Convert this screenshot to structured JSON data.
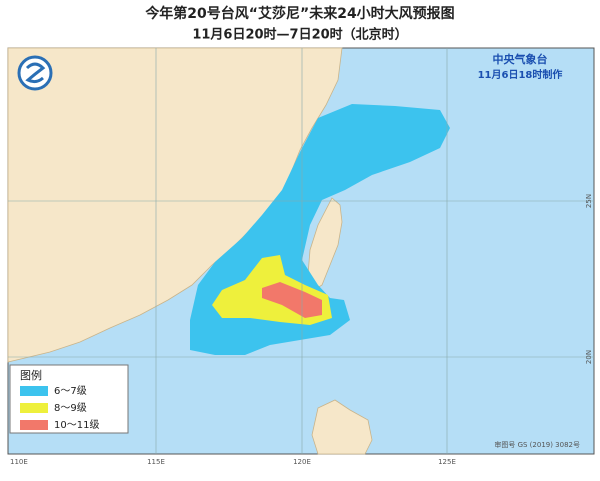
{
  "header": {
    "title": "今年第20号台风“艾莎尼”未来24小时大风预报图",
    "subtitle": "11月6日20时—7日20时（北京时）"
  },
  "issuer": {
    "agency": "中央气象台",
    "issued": "11月6日18时制作"
  },
  "legend": {
    "title": "图例",
    "items": [
      {
        "label": "6～7级",
        "color": "#3cc3ee"
      },
      {
        "label": "8～9级",
        "color": "#eef03c"
      },
      {
        "label": "10～11级",
        "color": "#f2786a"
      }
    ]
  },
  "axes": {
    "longitudes": [
      "110E",
      "115E",
      "120E",
      "125E"
    ],
    "latitudes": [
      "25N",
      "20N"
    ]
  },
  "footer": "审图号 GS (2019) 3082号"
}
